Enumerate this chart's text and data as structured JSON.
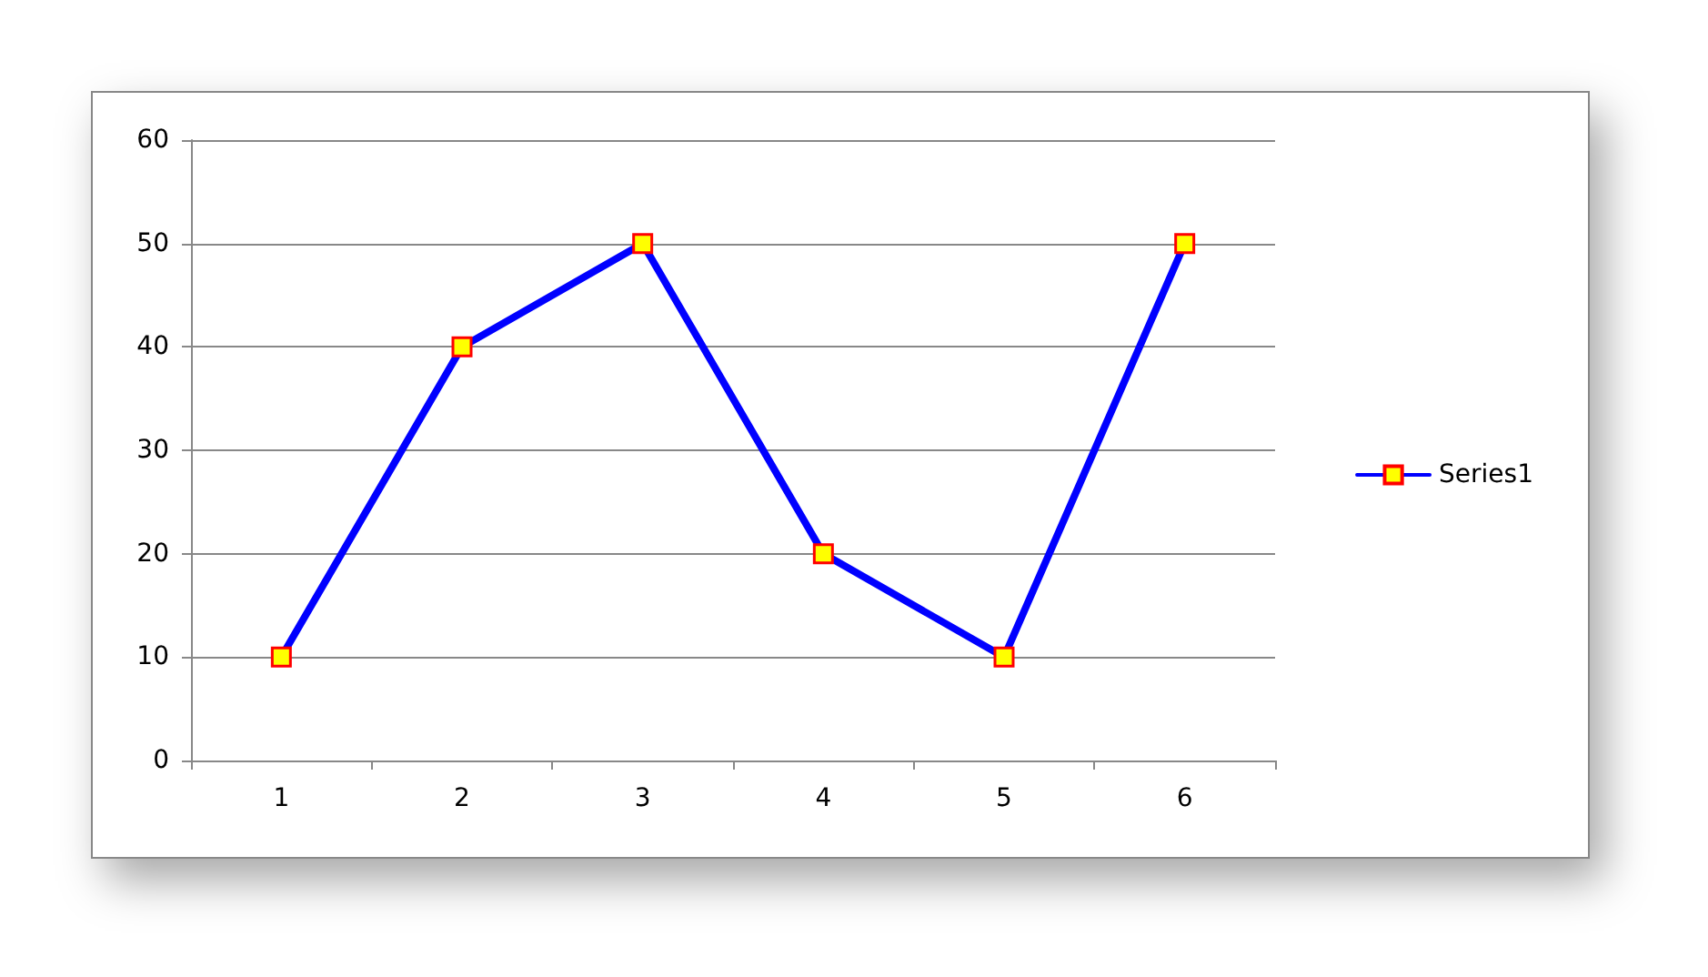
{
  "chart_data": {
    "type": "line",
    "categories": [
      "1",
      "2",
      "3",
      "4",
      "5",
      "6"
    ],
    "series": [
      {
        "name": "Series1",
        "color": "#0000ff",
        "values": [
          10,
          40,
          50,
          20,
          10,
          50
        ]
      }
    ],
    "ylim": [
      0,
      60
    ],
    "yticks": [
      0,
      10,
      20,
      30,
      40,
      50,
      60
    ],
    "grid": "y",
    "legend": "right",
    "marker": "square",
    "line_style": "solid"
  }
}
